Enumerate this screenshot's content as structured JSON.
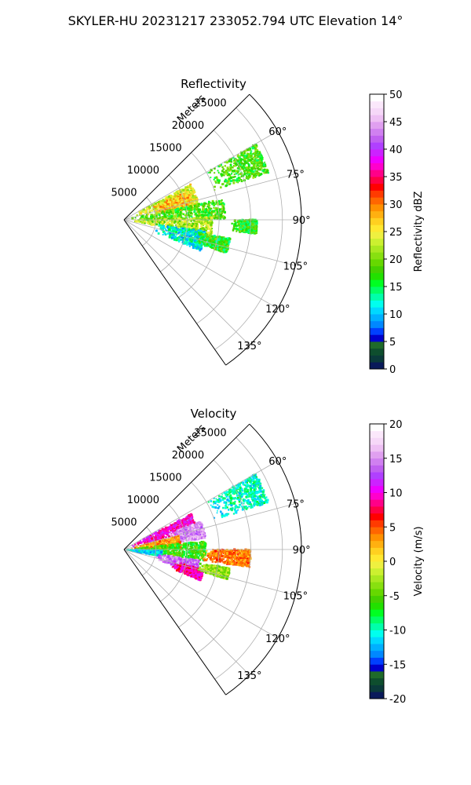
{
  "figure_title": "SKYLER-HU  20231217  233052.794 UTC Elevation 14°",
  "chart_data": [
    {
      "type": "heatmap",
      "title": "Reflectivity",
      "range_label": "Meters",
      "range_ticks": [
        5000,
        10000,
        15000,
        20000,
        25000
      ],
      "range_lim": [
        0,
        28000
      ],
      "azimuth_lim": [
        45,
        145
      ],
      "azimuth_ticks": [
        "60°",
        "75°",
        "90°",
        "105°",
        "120°",
        "135°"
      ],
      "grid": true,
      "colorbar": {
        "label": "Reflectivity dBZ",
        "range": [
          0,
          50
        ],
        "ticks": [
          0,
          5,
          10,
          15,
          20,
          25,
          30,
          35,
          40,
          45,
          50
        ],
        "colors": [
          "#0a1a5a",
          "#0a3a3a",
          "#0e4e2e",
          "#1f6a2a",
          "#0000cc",
          "#0040ff",
          "#0088ff",
          "#00b0ff",
          "#00d8ff",
          "#00ffee",
          "#00ffaa",
          "#00ff66",
          "#00ff22",
          "#22e000",
          "#44d000",
          "#66d800",
          "#88e010",
          "#aae820",
          "#ccf030",
          "#eef040",
          "#ffe830",
          "#ffd020",
          "#ffb010",
          "#ff9000",
          "#ff6600",
          "#ff3a00",
          "#ff0000",
          "#ff0044",
          "#ff0088",
          "#ff00cc",
          "#ee00ff",
          "#cc22ff",
          "#b040ff",
          "#c060f0",
          "#d080f0",
          "#e0a0f0",
          "#eec0f4",
          "#f6d8f8",
          "#fbe8fb",
          "#ffffff"
        ]
      },
      "echoes": [
        {
          "az": [
            60,
            72
          ],
          "r": [
            15000,
            24000
          ],
          "dbz": 18
        },
        {
          "az": [
            62,
            78
          ],
          "r": [
            2000,
            12000
          ],
          "dbz": 24
        },
        {
          "az": [
            66,
            80
          ],
          "r": [
            5000,
            11000
          ],
          "dbz": 27
        },
        {
          "az": [
            78,
            90
          ],
          "r": [
            1000,
            16000
          ],
          "dbz": 18
        },
        {
          "az": [
            88,
            100
          ],
          "r": [
            1000,
            14000
          ],
          "dbz": 22
        },
        {
          "az": [
            98,
            112
          ],
          "r": [
            5000,
            13000
          ],
          "dbz": 12
        },
        {
          "az": [
            100,
            108
          ],
          "r": [
            12000,
            17000
          ],
          "dbz": 17
        },
        {
          "az": [
            90,
            96
          ],
          "r": [
            17000,
            21000
          ],
          "dbz": 17
        }
      ]
    },
    {
      "type": "heatmap",
      "title": "Velocity",
      "range_label": "Meters",
      "range_ticks": [
        5000,
        10000,
        15000,
        20000,
        25000
      ],
      "range_lim": [
        0,
        28000
      ],
      "azimuth_lim": [
        45,
        145
      ],
      "azimuth_ticks": [
        "60°",
        "75°",
        "90°",
        "105°",
        "120°",
        "135°"
      ],
      "grid": true,
      "colorbar": {
        "label": "Velocity (m/s)",
        "range": [
          -20,
          20
        ],
        "ticks": [
          -20,
          -15,
          -10,
          -5,
          0,
          5,
          10,
          15,
          20
        ],
        "colors": [
          "#0a1a5a",
          "#0a3a3a",
          "#0e4e2e",
          "#1f6a2a",
          "#0000cc",
          "#0040ff",
          "#0088ff",
          "#00b0ff",
          "#00d8ff",
          "#00ffee",
          "#00ffaa",
          "#00ff66",
          "#00ff22",
          "#22e000",
          "#44d000",
          "#66d800",
          "#88e010",
          "#aae820",
          "#ccf030",
          "#eef040",
          "#ffe830",
          "#ffd020",
          "#ffb010",
          "#ff9000",
          "#ff6600",
          "#ff3a00",
          "#ff0000",
          "#ff0044",
          "#ff0088",
          "#ff00cc",
          "#ee00ff",
          "#cc22ff",
          "#b040ff",
          "#c060f0",
          "#d080f0",
          "#e0a0f0",
          "#eec0f4",
          "#f6d8f8",
          "#fbe8fb",
          "#ffffff"
        ]
      },
      "echoes": [
        {
          "az": [
            60,
            72
          ],
          "r": [
            15000,
            24000
          ],
          "vel": -10
        },
        {
          "az": [
            62,
            74
          ],
          "r": [
            1000,
            12000
          ],
          "vel": 10
        },
        {
          "az": [
            70,
            82
          ],
          "r": [
            7000,
            13000
          ],
          "vel": 15
        },
        {
          "az": [
            76,
            90
          ],
          "r": [
            1000,
            9000
          ],
          "vel": 3
        },
        {
          "az": [
            84,
            98
          ],
          "r": [
            1000,
            13000
          ],
          "vel": -6
        },
        {
          "az": [
            92,
            100
          ],
          "r": [
            500,
            6000
          ],
          "vel": -11
        },
        {
          "az": [
            98,
            108
          ],
          "r": [
            5000,
            12000
          ],
          "vel": 14
        },
        {
          "az": [
            104,
            112
          ],
          "r": [
            8000,
            13000
          ],
          "vel": 9
        },
        {
          "az": [
            90,
            98
          ],
          "r": [
            12000,
            20000
          ],
          "vel": 4
        },
        {
          "az": [
            100,
            106
          ],
          "r": [
            12000,
            17000
          ],
          "vel": -3
        }
      ]
    }
  ]
}
